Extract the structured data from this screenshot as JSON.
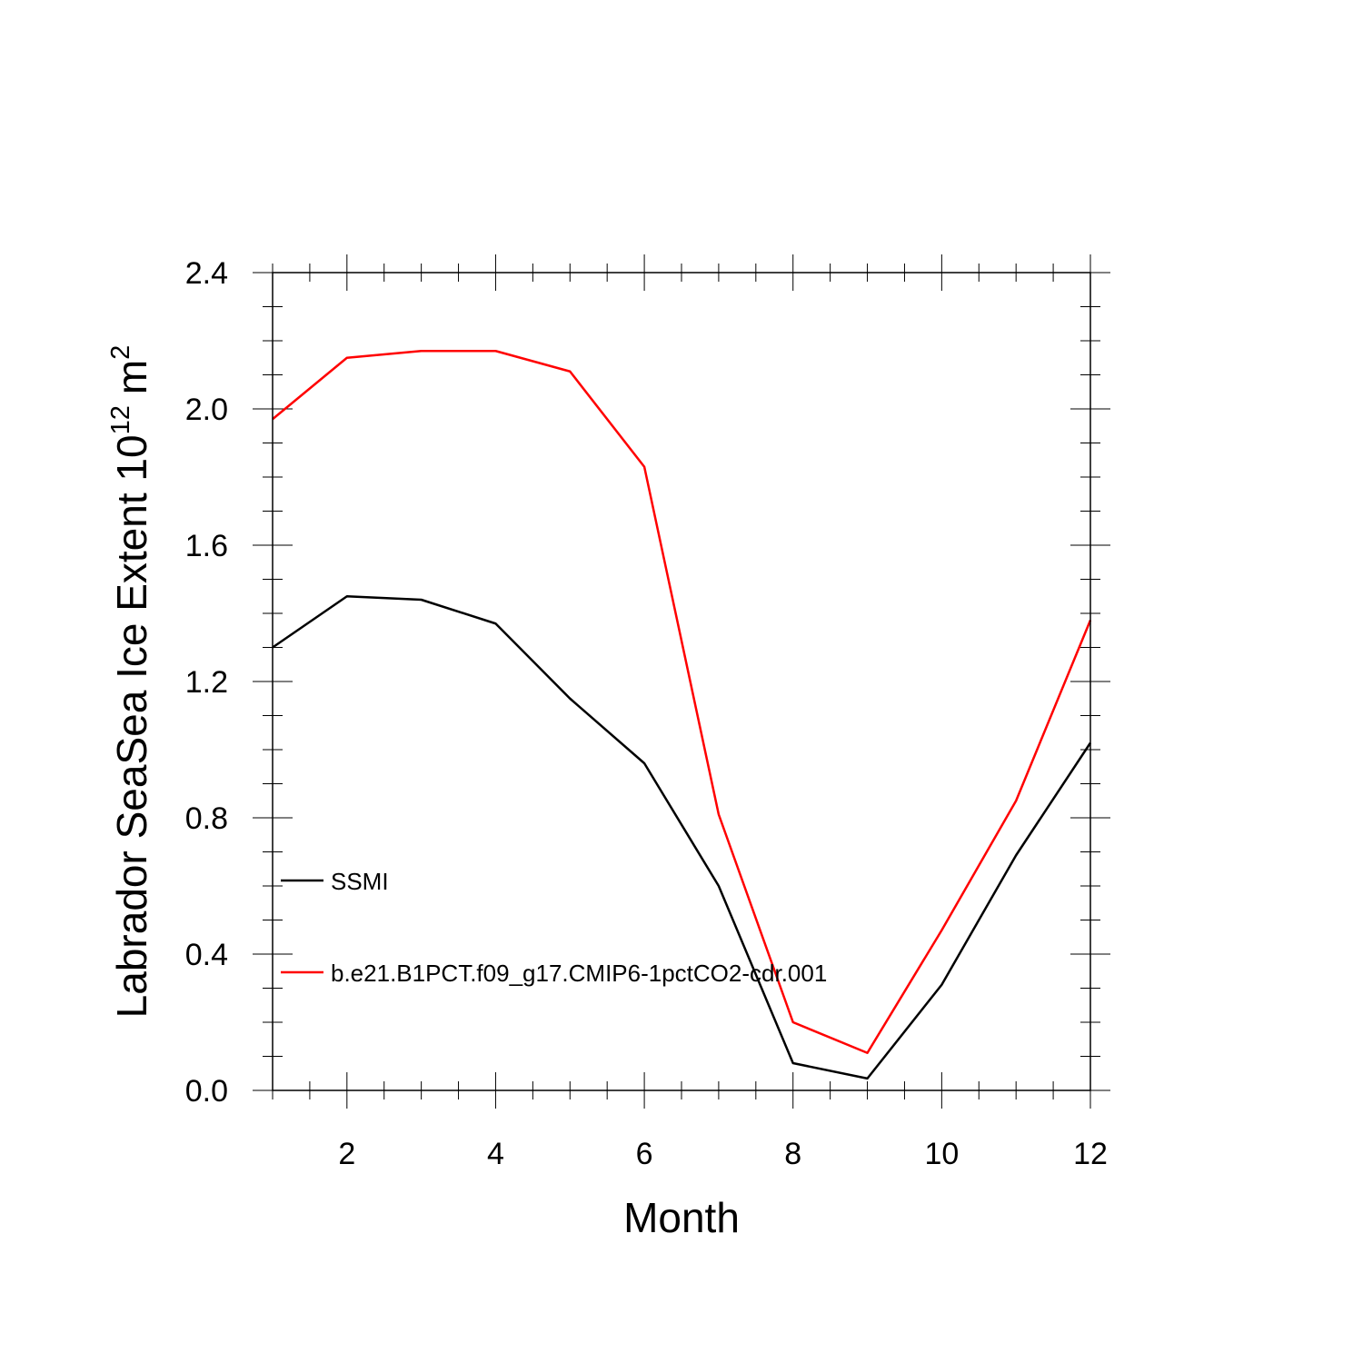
{
  "chart_data": {
    "type": "line",
    "title": "",
    "xlabel": "Month",
    "ylabel_main": "Labrador SeaSea Ice Extent 10",
    "ylabel_exponent": "12",
    "ylabel_unit": "m",
    "ylabel_unit_exponent": "2",
    "xlim": [
      1,
      12
    ],
    "ylim": [
      0,
      2.4
    ],
    "x_ticks": [
      2,
      4,
      6,
      8,
      10,
      12
    ],
    "x_tick_labels": [
      "2",
      "4",
      "6",
      "8",
      "10",
      "12"
    ],
    "y_ticks": [
      0,
      0.4,
      0.8,
      1.2,
      1.6,
      2.0,
      2.4
    ],
    "y_tick_labels": [
      "0.0",
      "0.4",
      "0.8",
      "1.2",
      "1.6",
      "2.0",
      "2.4"
    ],
    "x": [
      1,
      2,
      3,
      4,
      5,
      6,
      7,
      8,
      9,
      10,
      11,
      12
    ],
    "series": [
      {
        "name": "SSMI",
        "color": "#000000",
        "values": [
          1.3,
          1.45,
          1.44,
          1.37,
          1.15,
          0.96,
          0.6,
          0.08,
          0.035,
          0.31,
          0.69,
          1.02
        ]
      },
      {
        "name": "b.e21.B1PCT.f09_g17.CMIP6-1pctCO2-cdr.001",
        "color": "#ff0000",
        "values": [
          1.97,
          2.15,
          2.17,
          2.17,
          2.11,
          1.83,
          0.81,
          0.2,
          0.11,
          0.47,
          0.85,
          1.38
        ]
      }
    ],
    "legend_position": "left-lower"
  }
}
